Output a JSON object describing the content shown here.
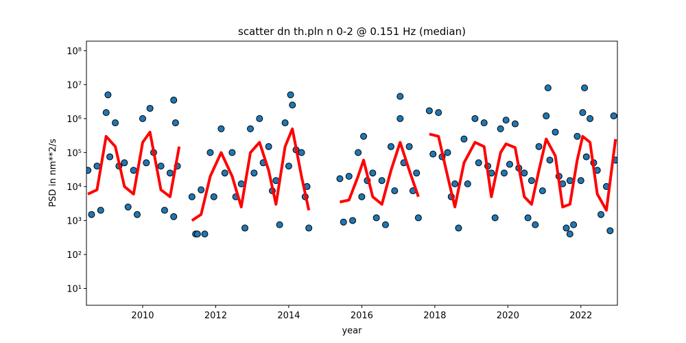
{
  "chart_data": {
    "type": "scatter",
    "title": "scatter dn th.pln n 0-2 @ 0.151 Hz (median)",
    "xlabel": "year",
    "ylabel": "PSD in nm**2/s",
    "xlim": [
      2008.46,
      2023.0
    ],
    "ylim": [
      3.2,
      190000000
    ],
    "log_y": true,
    "xticks": [
      2010,
      2012,
      2014,
      2016,
      2018,
      2020,
      2022
    ],
    "yticks": [
      {
        "value": 10,
        "label": "10¹"
      },
      {
        "value": 100,
        "label": "10²"
      },
      {
        "value": 1000,
        "label": "10³"
      },
      {
        "value": 10000,
        "label": "10⁴"
      },
      {
        "value": 100000,
        "label": "10⁵"
      },
      {
        "value": 1000000,
        "label": "10⁶"
      },
      {
        "value": 10000000,
        "label": "10⁷"
      },
      {
        "value": 100000000,
        "label": "10⁸"
      }
    ],
    "scatter": {
      "color": "#1f77b4",
      "x": [
        2008.5,
        2008.6,
        2008.75,
        2008.85,
        2009.0,
        2009.1,
        2009.25,
        2009.35,
        2009.5,
        2009.6,
        2009.75,
        2009.85,
        2010.0,
        2010.1,
        2010.2,
        2010.3,
        2010.5,
        2010.6,
        2010.75,
        2010.85,
        2010.9,
        2010.95,
        2011.35,
        2011.45,
        2011.6,
        2011.7,
        2011.85,
        2011.95,
        2012.15,
        2012.25,
        2012.45,
        2012.55,
        2012.7,
        2012.8,
        2012.95,
        2013.05,
        2013.2,
        2013.3,
        2013.45,
        2013.55,
        2013.65,
        2013.75,
        2013.9,
        2014.0,
        2014.1,
        2014.2,
        2014.35,
        2014.45,
        2014.5,
        2014.55,
        2015.4,
        2015.5,
        2015.65,
        2015.75,
        2015.9,
        2016.0,
        2016.05,
        2016.15,
        2016.3,
        2016.4,
        2016.55,
        2016.65,
        2016.8,
        2016.9,
        2017.05,
        2017.15,
        2017.3,
        2017.4,
        2017.5,
        2017.55,
        2017.85,
        2017.95,
        2018.1,
        2018.2,
        2018.35,
        2018.45,
        2018.55,
        2018.65,
        2018.8,
        2018.9,
        2019.1,
        2019.2,
        2019.35,
        2019.45,
        2019.55,
        2019.65,
        2019.8,
        2019.9,
        2019.95,
        2020.05,
        2020.2,
        2020.3,
        2020.45,
        2020.55,
        2020.65,
        2020.75,
        2020.85,
        2020.95,
        2021.05,
        2021.15,
        2021.3,
        2021.4,
        2021.5,
        2021.6,
        2021.7,
        2021.8,
        2021.9,
        2022.0,
        2022.05,
        2022.15,
        2022.25,
        2022.35,
        2022.45,
        2022.55,
        2022.7,
        2022.8,
        2022.9,
        2022.95,
        2009.05,
        2014.05,
        2017.05,
        2021.1,
        2022.1,
        2010.85,
        2021.7,
        2011.5
      ],
      "values": [
        30000,
        1500,
        40000,
        2000,
        1500000,
        75000,
        750000,
        40000,
        50000,
        2500,
        30000,
        1500,
        1000000,
        50000,
        2000000,
        100000,
        40000,
        2000,
        25000,
        1300,
        750000,
        40000,
        5000,
        400,
        8000,
        400,
        100000,
        5000,
        500000,
        25000,
        100000,
        5000,
        12000,
        600,
        500000,
        25000,
        1000000,
        50000,
        150000,
        7500,
        15000,
        750,
        750000,
        40000,
        2500000,
        120000,
        100000,
        5000,
        10000,
        600,
        17000,
        900,
        20000,
        1000,
        100000,
        5000,
        300000,
        15000,
        25000,
        1200,
        15000,
        750,
        150000,
        7500,
        1000000,
        50000,
        150000,
        7500,
        25000,
        1200,
        1700000,
        90000,
        1500000,
        75000,
        100000,
        5000,
        12000,
        600,
        250000,
        12000,
        1000000,
        50000,
        750000,
        40000,
        25000,
        1200,
        500000,
        25000,
        900000,
        45000,
        700000,
        35000,
        25000,
        1200,
        15000,
        750,
        150000,
        7500,
        1200000,
        60000,
        400000,
        20000,
        12000,
        600,
        15000,
        750,
        300000,
        15000,
        1500000,
        75000,
        1000000,
        50000,
        30000,
        1500,
        10000,
        500,
        1200000,
        60000,
        5000000,
        5000000,
        4500000,
        8000000,
        8000000,
        3500000,
        400,
        400
      ]
    },
    "median": {
      "color": "#ff0000",
      "x": [
        2008.5,
        2008.75,
        2009.0,
        2009.25,
        2009.5,
        2009.75,
        2010.0,
        2010.2,
        2010.5,
        2010.75,
        2011.0,
        2011.2,
        2011.35,
        2011.6,
        2011.85,
        2012.15,
        2012.45,
        2012.7,
        2012.95,
        2013.2,
        2013.45,
        2013.65,
        2013.9,
        2014.1,
        2014.35,
        2014.55,
        2015.0,
        2015.4,
        2015.65,
        2015.9,
        2016.05,
        2016.3,
        2016.55,
        2016.8,
        2017.05,
        2017.3,
        2017.55,
        2017.7,
        2017.85,
        2018.1,
        2018.35,
        2018.55,
        2018.8,
        2019.1,
        2019.35,
        2019.55,
        2019.8,
        2019.95,
        2020.2,
        2020.45,
        2020.65,
        2020.85,
        2021.05,
        2021.3,
        2021.5,
        2021.7,
        2021.9,
        2022.05,
        2022.25,
        2022.45,
        2022.7,
        2022.95
      ],
      "values": [
        6000,
        8000,
        300000,
        150000,
        10000,
        6000,
        200000,
        400000,
        8000,
        5000,
        150000,
        null,
        1000,
        1500,
        20000,
        100000,
        20000,
        2500,
        100000,
        200000,
        30000,
        3000,
        150000,
        500000,
        20000,
        2000,
        null,
        3500,
        4000,
        20000,
        60000,
        5000,
        3000,
        30000,
        200000,
        30000,
        5000,
        null,
        350000,
        300000,
        20000,
        2500,
        50000,
        200000,
        150000,
        5000,
        100000,
        180000,
        140000,
        5000,
        3000,
        30000,
        250000,
        80000,
        2500,
        3000,
        60000,
        300000,
        200000,
        6000,
        2000,
        250000
      ]
    }
  }
}
